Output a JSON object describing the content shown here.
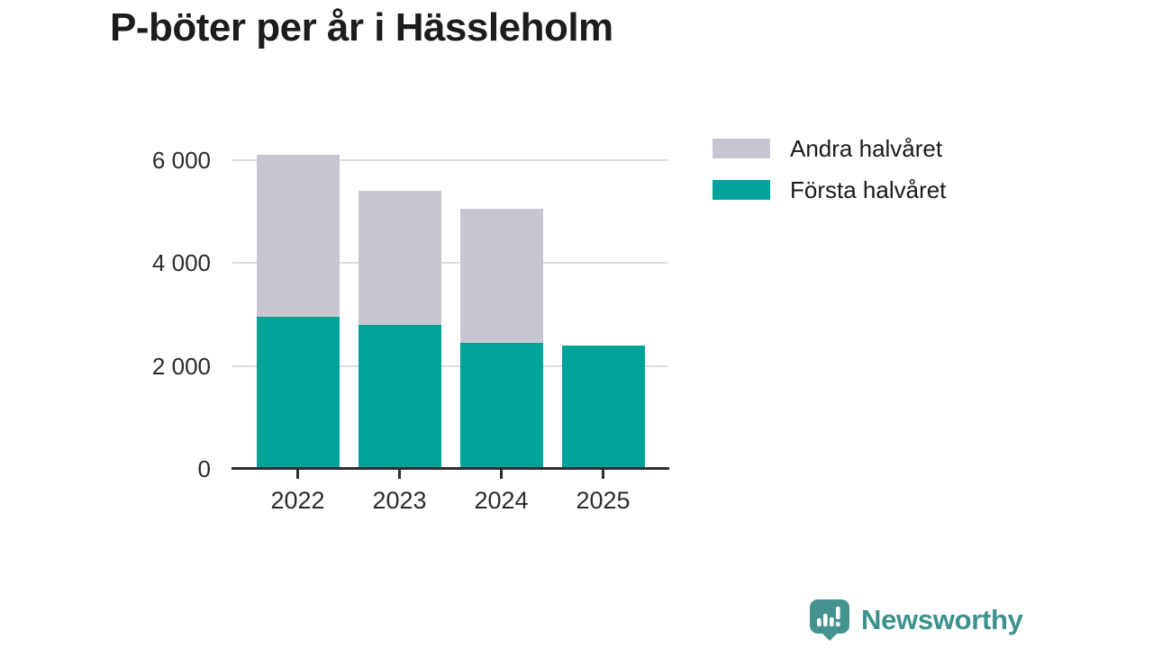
{
  "title": "P-böter per år i Hässleholm",
  "chart_data": {
    "type": "bar",
    "stacked": true,
    "title": "P-böter per år i Hässleholm",
    "categories": [
      "2022",
      "2023",
      "2024",
      "2025"
    ],
    "series": [
      {
        "name": "Första halvåret",
        "color": "#00a39a",
        "values": [
          2950,
          2800,
          2450,
          2400
        ]
      },
      {
        "name": "Andra halvåret",
        "color": "#c8c6d0",
        "values": [
          3150,
          2600,
          2600,
          0
        ]
      }
    ],
    "totals": [
      6100,
      5400,
      5050,
      2400
    ],
    "xlabel": "",
    "ylabel": "",
    "ylim": [
      0,
      6400
    ],
    "yticks": [
      0,
      2000,
      4000,
      6000
    ],
    "ytick_labels": [
      "0",
      "2 000",
      "4 000",
      "6 000"
    ],
    "grid": true,
    "legend_position": "top-right"
  },
  "legend": {
    "items": [
      {
        "label": "Andra halvåret",
        "color": "#c8c6d0"
      },
      {
        "label": "Första halvåret",
        "color": "#00a39a"
      }
    ]
  },
  "colors": {
    "bar_first_half": "#00a39a",
    "bar_second_half": "#c8c6d0",
    "gridline": "#dcdcdc",
    "axis": "#2e2e2e",
    "title_text": "#1c1c1c",
    "tick_text": "#2b2b2b",
    "brand": "#3d918d"
  },
  "brand": {
    "name": "Newsworthy"
  }
}
